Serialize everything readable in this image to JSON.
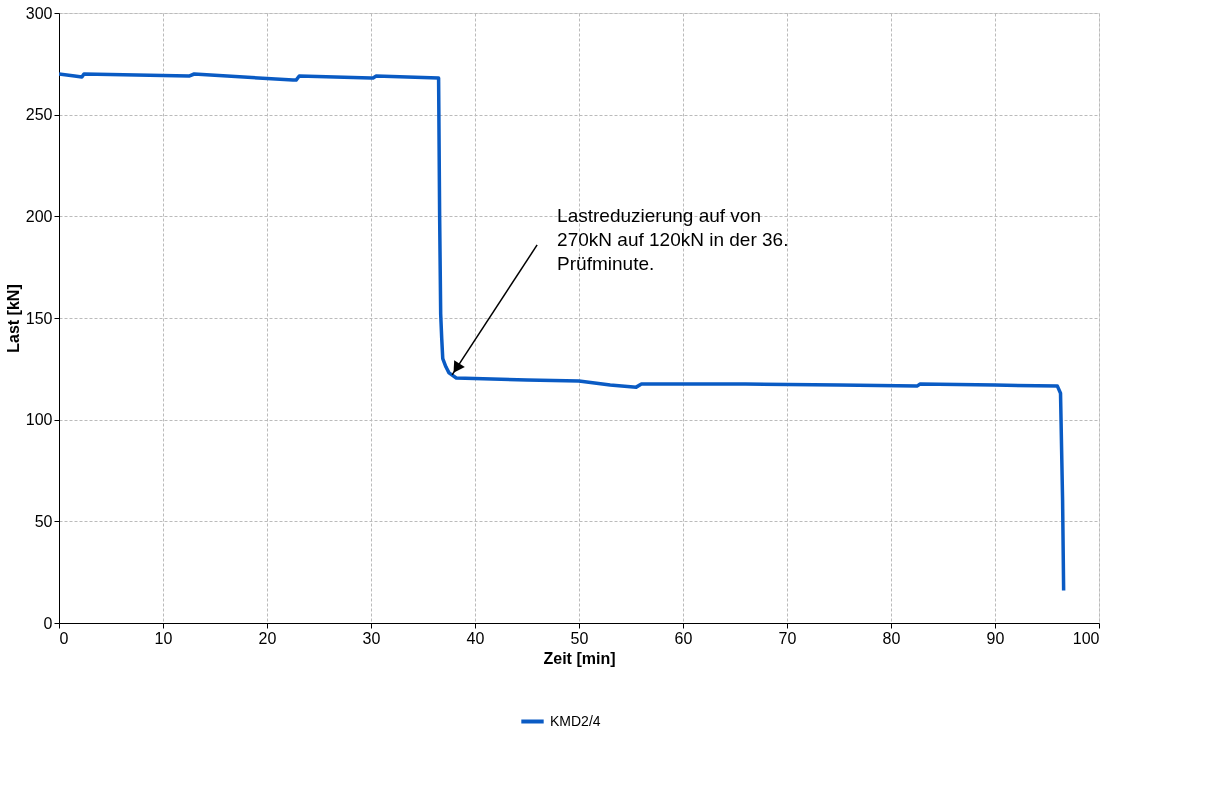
{
  "chart_data": {
    "type": "line",
    "xlabel": "Zeit [min]",
    "ylabel": "Last [kN]",
    "xlim": [
      0,
      100
    ],
    "ylim": [
      0,
      300
    ],
    "xticks": [
      0,
      10,
      20,
      30,
      40,
      50,
      60,
      70,
      80,
      90,
      100
    ],
    "yticks": [
      0,
      50,
      100,
      150,
      200,
      250,
      300
    ],
    "grid": true,
    "legend": "bottom",
    "marker": "none",
    "line_style": "solid",
    "annotations": [
      {
        "text": "Lastreduzierung auf von 270kN auf 120kN in der 36. Prüfminute.",
        "x": 37.8,
        "y": 122
      }
    ],
    "series": [
      {
        "name": "KMD2/4",
        "color": "#0a5bc4",
        "x": [
          0,
          1.5,
          2.2,
          2.4,
          12.5,
          13,
          22.5,
          22.8,
          23.1,
          30,
          30.2,
          30.5,
          36.5,
          36.6,
          36.7,
          36.8,
          36.9,
          37.2,
          37.5,
          38.2,
          45,
          50,
          53,
          55.5,
          56,
          66,
          75,
          82.5,
          82.8,
          90,
          96,
          96.3,
          96.5,
          96.6
        ],
        "values": [
          270,
          269,
          268.5,
          270,
          269,
          270,
          267,
          267,
          269,
          268,
          268,
          269,
          268,
          200,
          152,
          140,
          130,
          126,
          123,
          120.5,
          119.5,
          119,
          117,
          116,
          117.5,
          117.5,
          117,
          116.5,
          117.5,
          117,
          116.5,
          113,
          60,
          16
        ]
      }
    ]
  }
}
